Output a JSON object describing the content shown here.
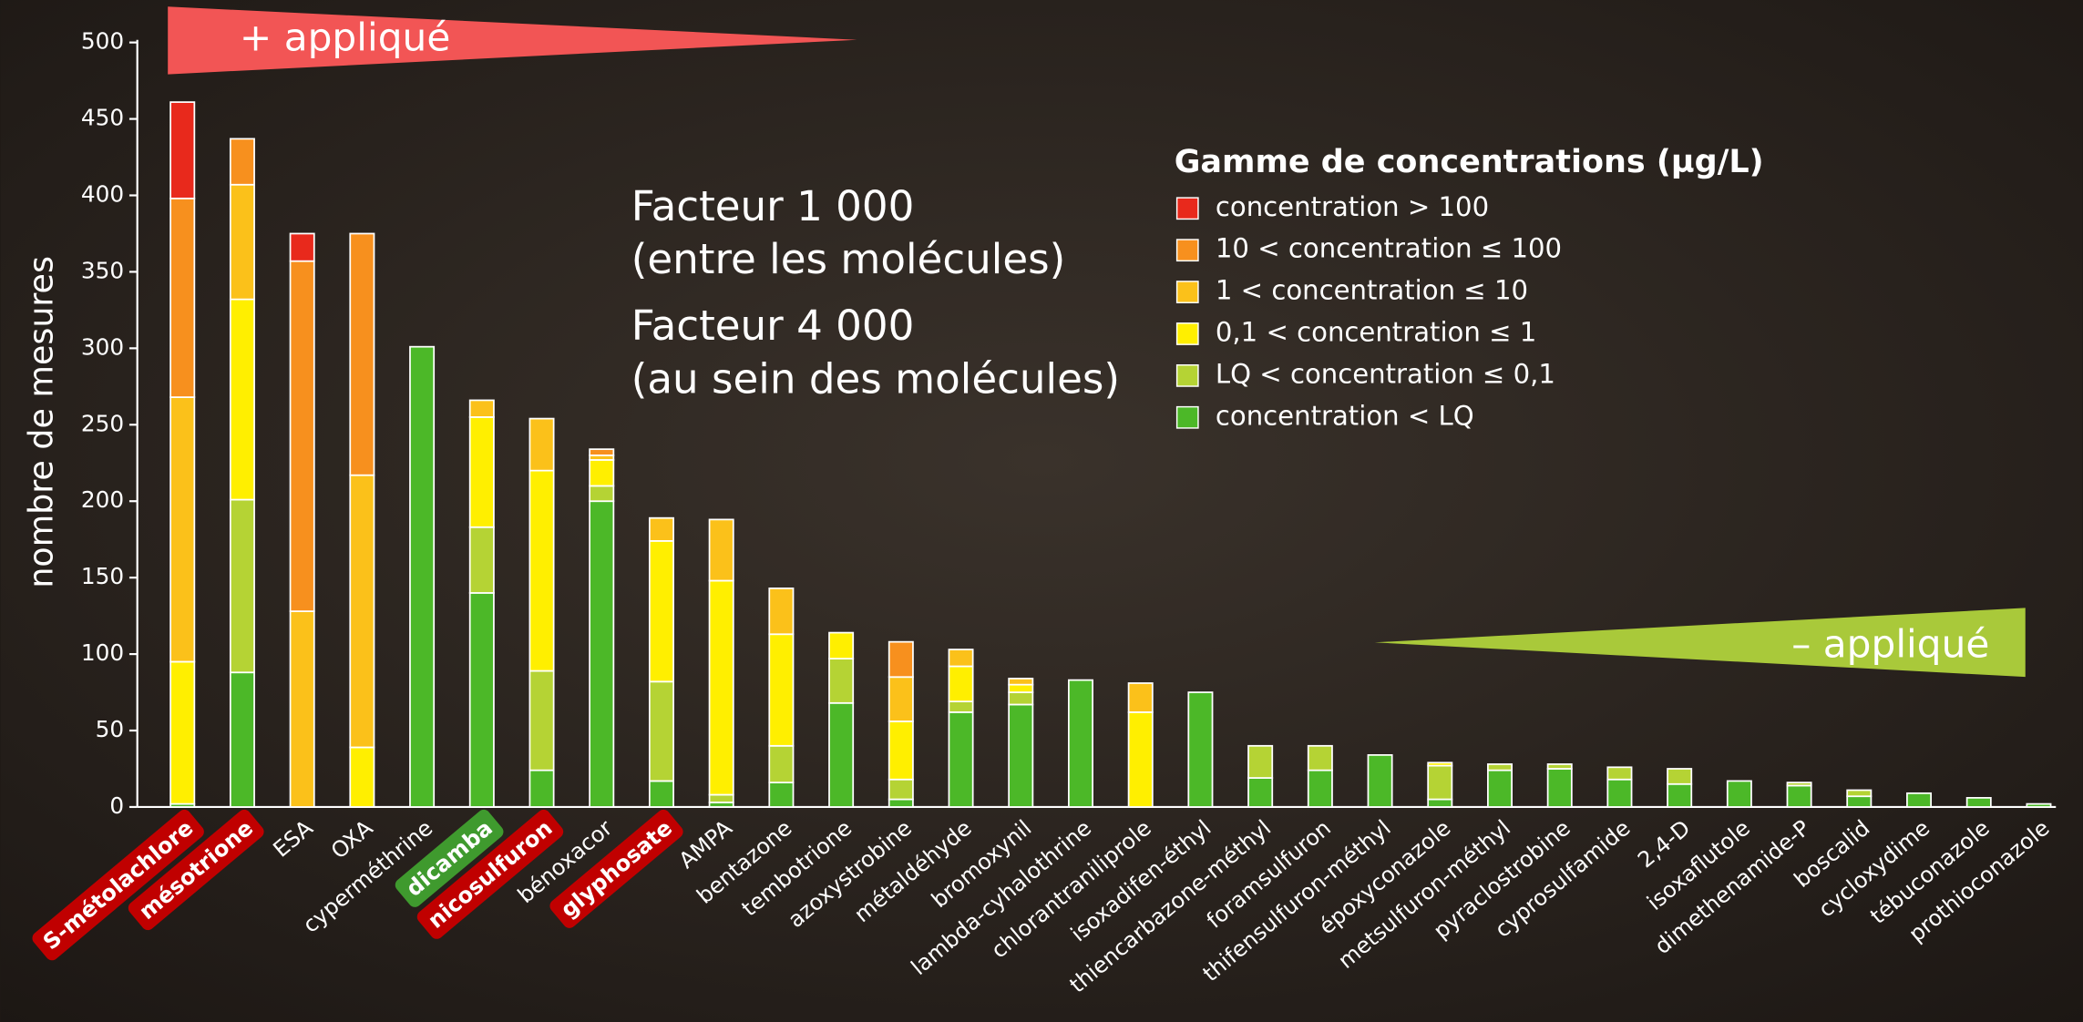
{
  "chart_data": {
    "type": "stacked-bar",
    "y_label": "nombre de mesures",
    "legend_title": "Gamme de concentrations (µg/L)",
    "annotations": [
      "+ appliqué",
      "– appliqué",
      "Facteur 1 000",
      "(entre les molécules)",
      "Facteur 4 000",
      "(au sein des molécules)"
    ],
    "categories": [
      "S-métolachlore",
      "mésotrione",
      "ESA",
      "OXA",
      "cyperméthrine",
      "dicamba",
      "nicosulfuron",
      "bénoxacor",
      "glyphosate",
      "AMPA",
      "bentazone",
      "tembotrione",
      "azoxystrobine",
      "métaldéhyde",
      "bromoxynil",
      "lambda-cyhalothrine",
      "chlorantraniliprole",
      "isoxadifen-éthyl",
      "thiencarbazone-méthyl",
      "foramsulfuron",
      "thifensulfuron-méthyl",
      "époxyconazole",
      "metsulfuron-méthyl",
      "pyraclostrobine",
      "cyprosulfamide",
      "2,4-D",
      "isoxaflutole",
      "dimethenamide-P",
      "boscalid",
      "cycloxydime",
      "tébuconazole",
      "prothioconazole"
    ],
    "label_highlights": [
      "#c00000",
      "#c00000",
      null,
      null,
      null,
      "#3f9a2e",
      "#c00000",
      null,
      "#c00000",
      null,
      null,
      null,
      null,
      null,
      null,
      null,
      null,
      null,
      null,
      null,
      null,
      null,
      null,
      null,
      null,
      null,
      null,
      null,
      null,
      null,
      null,
      null
    ],
    "series": [
      {
        "name": "concentration < LQ",
        "color": "#4cb828",
        "values": [
          2,
          88,
          0,
          0,
          301,
          140,
          24,
          200,
          17,
          3,
          16,
          68,
          5,
          62,
          67,
          83,
          0,
          75,
          19,
          24,
          34,
          5,
          24,
          25,
          18,
          15,
          17,
          14,
          7,
          9,
          6,
          2
        ]
      },
      {
        "name": "LQ < concentration ≤ 0,1",
        "color": "#b5d334",
        "values": [
          0,
          113,
          0,
          0,
          0,
          43,
          65,
          10,
          65,
          5,
          24,
          29,
          13,
          7,
          8,
          0,
          0,
          0,
          21,
          16,
          0,
          22,
          4,
          3,
          8,
          10,
          0,
          2,
          4,
          0,
          0,
          0
        ]
      },
      {
        "name": "0,1 < concentration ≤ 1",
        "color": "#ffef00",
        "values": [
          93,
          131,
          0,
          39,
          0,
          72,
          131,
          17,
          92,
          140,
          73,
          17,
          38,
          23,
          5,
          0,
          62,
          0,
          0,
          0,
          0,
          2,
          0,
          0,
          0,
          0,
          0,
          0,
          0,
          0,
          0,
          0
        ]
      },
      {
        "name": "1 < concentration ≤ 10",
        "color": "#fbc11a",
        "values": [
          173,
          75,
          128,
          178,
          0,
          11,
          34,
          3,
          15,
          40,
          30,
          0,
          29,
          11,
          4,
          0,
          19,
          0,
          0,
          0,
          0,
          0,
          0,
          0,
          0,
          0,
          0,
          0,
          0,
          0,
          0,
          0
        ]
      },
      {
        "name": "10 < concentration ≤ 100",
        "color": "#f7901e",
        "values": [
          130,
          30,
          229,
          158,
          0,
          0,
          0,
          4,
          0,
          0,
          0,
          0,
          23,
          0,
          0,
          0,
          0,
          0,
          0,
          0,
          0,
          0,
          0,
          0,
          0,
          0,
          0,
          0,
          0,
          0,
          0,
          0
        ]
      },
      {
        "name": "concentration > 100",
        "color": "#e8291c",
        "values": [
          63,
          0,
          18,
          0,
          0,
          0,
          0,
          0,
          0,
          0,
          0,
          0,
          0,
          0,
          0,
          0,
          0,
          0,
          0,
          0,
          0,
          0,
          0,
          0,
          0,
          0,
          0,
          0,
          0,
          0,
          0,
          0
        ]
      }
    ],
    "ylim": [
      0,
      500
    ],
    "yticks": [
      0,
      50,
      100,
      150,
      200,
      250,
      300,
      350,
      400,
      450,
      500
    ]
  }
}
